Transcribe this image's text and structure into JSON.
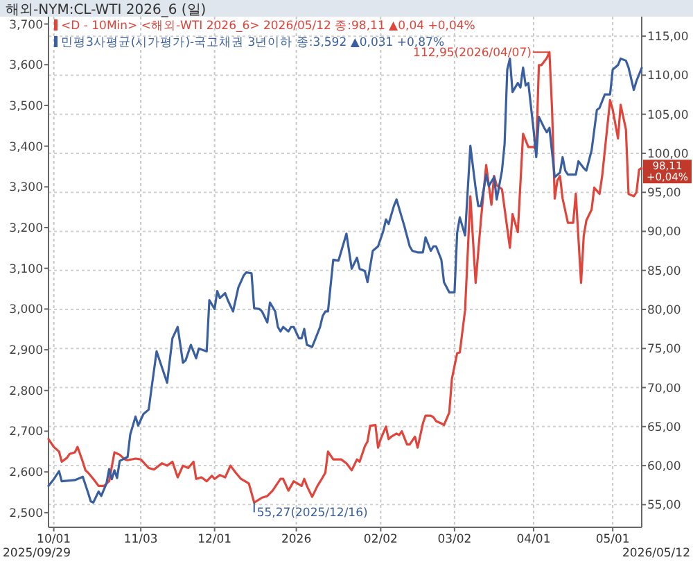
{
  "chart_data": {
    "type": "line",
    "title": "해외-NYM:CL-WTI 2026_6 (일)",
    "xlim": [
      "2025-09-29",
      "2026-05-12"
    ],
    "xticks": [
      {
        "value": "2025-10-01",
        "label": "10/01"
      },
      {
        "value": "2025-11-03",
        "label": "11/03"
      },
      {
        "value": "2025-12-01",
        "label": "12/01"
      },
      {
        "value": "2026-01-01",
        "label": "2026"
      },
      {
        "value": "2026-02-02",
        "label": "02/02"
      },
      {
        "value": "2026-03-02",
        "label": "03/02"
      },
      {
        "value": "2026-04-01",
        "label": "04/01"
      },
      {
        "value": "2026-05-01",
        "label": "05/01"
      }
    ],
    "ylim": [
      2464,
      3718
    ],
    "yticks": [
      {
        "value": 2500,
        "label": "2,500"
      },
      {
        "value": 2600,
        "label": "2,600"
      },
      {
        "value": 2700,
        "label": "2,700"
      },
      {
        "value": 2800,
        "label": "2,800"
      },
      {
        "value": 2900,
        "label": "2,900"
      },
      {
        "value": 3000,
        "label": "3,000"
      },
      {
        "value": 3100,
        "label": "3,100"
      },
      {
        "value": 3200,
        "label": "3,200"
      },
      {
        "value": 3300,
        "label": "3,300"
      },
      {
        "value": 3400,
        "label": "3,400"
      },
      {
        "value": 3500,
        "label": "3,500"
      },
      {
        "value": 3600,
        "label": "3,600"
      },
      {
        "value": 3700,
        "label": "3,700"
      }
    ],
    "y2lim": [
      52.1,
      117.5
    ],
    "y2ticks": [
      {
        "value": 55,
        "label": "55,00"
      },
      {
        "value": 60,
        "label": "60,00"
      },
      {
        "value": 65,
        "label": "65,00"
      },
      {
        "value": 70,
        "label": "70,00"
      },
      {
        "value": 75,
        "label": "75,00"
      },
      {
        "value": 80,
        "label": "80,00"
      },
      {
        "value": 85,
        "label": "85,00"
      },
      {
        "value": 90,
        "label": "90,00"
      },
      {
        "value": 95,
        "label": "95,00"
      },
      {
        "value": 100,
        "label": "100,00"
      },
      {
        "value": 105,
        "label": "105,00"
      },
      {
        "value": 110,
        "label": "110,00"
      },
      {
        "value": 115,
        "label": "115,00"
      }
    ],
    "grid": true,
    "legend": "top left",
    "marker": "none",
    "line_style": "solid",
    "series": [
      {
        "name": "<D - 10Min> <해외-WTI 2026_6> 2026/05/12 종:98,11 ▲0,04 +0,04%",
        "color": "#e0443a",
        "axis": "y2",
        "x": [
          "2025-09-29",
          "2025-10-01",
          "2025-10-03",
          "2025-10-04",
          "2025-10-06",
          "2025-10-07",
          "2025-10-09",
          "2025-10-10",
          "2025-10-12",
          "2025-10-13",
          "2025-10-14",
          "2025-10-16",
          "2025-10-18",
          "2025-10-20",
          "2025-10-22",
          "2025-10-24",
          "2025-10-26",
          "2025-10-28",
          "2025-10-29",
          "2025-11-01",
          "2025-11-03",
          "2025-11-06",
          "2025-11-08",
          "2025-11-11",
          "2025-11-13",
          "2025-11-15",
          "2025-11-17",
          "2025-11-19",
          "2025-11-21",
          "2025-11-23",
          "2025-11-24",
          "2025-11-26",
          "2025-11-28",
          "2025-11-30",
          "2025-12-01",
          "2025-12-03",
          "2025-12-05",
          "2025-12-07",
          "2025-12-09",
          "2025-12-11",
          "2025-12-14",
          "2025-12-15",
          "2025-12-16",
          "2025-12-19",
          "2025-12-21",
          "2025-12-23",
          "2025-12-26",
          "2025-12-27",
          "2025-12-29",
          "2025-12-31",
          "2026-01-03",
          "2026-01-04",
          "2026-01-05",
          "2026-01-07",
          "2026-01-09",
          "2026-01-11",
          "2026-01-12",
          "2026-01-13",
          "2026-01-15",
          "2026-01-18",
          "2026-01-20",
          "2026-01-22",
          "2026-01-24",
          "2026-01-25",
          "2026-01-27",
          "2026-01-28",
          "2026-01-29",
          "2026-01-31",
          "2026-02-01",
          "2026-02-02",
          "2026-02-04",
          "2026-02-05",
          "2026-02-06",
          "2026-02-08",
          "2026-02-09",
          "2026-02-10",
          "2026-02-12",
          "2026-02-13",
          "2026-02-15",
          "2026-02-16",
          "2026-02-18",
          "2026-02-19",
          "2026-02-21",
          "2026-02-22",
          "2026-02-23",
          "2026-02-25",
          "2026-02-26",
          "2026-02-28",
          "2026-03-01",
          "2026-03-03",
          "2026-03-04",
          "2026-03-06",
          "2026-03-08",
          "2026-03-10",
          "2026-03-12",
          "2026-03-14",
          "2026-03-16",
          "2026-03-17",
          "2026-03-18",
          "2026-03-20",
          "2026-03-23",
          "2026-03-24",
          "2026-03-26",
          "2026-03-28",
          "2026-03-30",
          "2026-04-01",
          "2026-04-02",
          "2026-04-03",
          "2026-04-04",
          "2026-04-06",
          "2026-04-07",
          "2026-04-08",
          "2026-04-09",
          "2026-04-10",
          "2026-04-11",
          "2026-04-12",
          "2026-04-14",
          "2026-04-16",
          "2026-04-17",
          "2026-04-19",
          "2026-04-20",
          "2026-04-21",
          "2026-04-23",
          "2026-04-24",
          "2026-04-26",
          "2026-04-27",
          "2026-04-30",
          "2026-05-01",
          "2026-05-03",
          "2026-05-04",
          "2026-05-06",
          "2026-05-07",
          "2026-05-09",
          "2026-05-10",
          "2026-05-11",
          "2026-05-12"
        ],
        "values": [
          63.4,
          62.4,
          61.8,
          60.5,
          61.0,
          61.5,
          61.7,
          62.4,
          60.5,
          59.4,
          59.1,
          58.3,
          57.4,
          57.4,
          58.0,
          61.7,
          61.4,
          60.8,
          60.7,
          60.9,
          60.8,
          59.7,
          59.5,
          60.3,
          60.0,
          60.5,
          58.5,
          60.0,
          59.7,
          60.5,
          58.3,
          58.5,
          58.0,
          58.7,
          58.3,
          58.8,
          58.5,
          60.0,
          59.1,
          58.3,
          57.7,
          56.5,
          55.27,
          55.9,
          56.1,
          56.8,
          58.3,
          58.3,
          56.8,
          58.0,
          57.4,
          58.3,
          57.4,
          56.0,
          57.4,
          58.5,
          59.1,
          61.8,
          60.8,
          60.8,
          60.3,
          59.4,
          60.8,
          60.5,
          62.5,
          63.1,
          65.1,
          65.2,
          62.3,
          63.4,
          65.0,
          63.4,
          63.7,
          64.1,
          63.9,
          64.4,
          62.7,
          62.7,
          63.7,
          62.3,
          65.4,
          66.4,
          66.4,
          66.2,
          65.7,
          65.4,
          65.2,
          66.8,
          71.1,
          74.4,
          74.5,
          79.9,
          94.5,
          83.4,
          91.4,
          98.5,
          93.4,
          97.1,
          95.9,
          95.4,
          87.9,
          92.2,
          89.9,
          102.5,
          100.8,
          100.8,
          100.5,
          111.3,
          111.3,
          112.2,
          112.95,
          105.6,
          94.2,
          96.5,
          97.1,
          94.2,
          91.1,
          91.1,
          94.8,
          83.4,
          89.4,
          91.4,
          92.8,
          95.6,
          94.8,
          97.1,
          106.8,
          105.6,
          101.9,
          106.2,
          103.1,
          94.8,
          94.5,
          95.0,
          97.9,
          98.11
        ]
      },
      {
        "name": "민평3사평균(시가평가)-국고채권 3년이하 종:3,592 ▲0,031 +0,87%",
        "color": "#3a5fa0",
        "x": [
          "2025-09-29",
          "2025-10-01",
          "2025-10-03",
          "2025-10-04",
          "2025-10-09",
          "2025-10-12",
          "2025-10-14",
          "2025-10-15",
          "2025-10-16",
          "2025-10-18",
          "2025-10-19",
          "2025-10-21",
          "2025-10-22",
          "2025-10-23",
          "2025-10-24",
          "2025-10-25",
          "2025-10-26",
          "2025-10-29",
          "2025-10-30",
          "2025-11-01",
          "2025-11-02",
          "2025-11-04",
          "2025-11-06",
          "2025-11-07",
          "2025-11-09",
          "2025-11-11",
          "2025-11-13",
          "2025-11-14",
          "2025-11-15",
          "2025-11-17",
          "2025-11-19",
          "2025-11-20",
          "2025-11-22",
          "2025-11-24",
          "2025-11-25",
          "2025-11-28",
          "2025-11-29",
          "2025-12-01",
          "2025-12-02",
          "2025-12-03",
          "2025-12-05",
          "2025-12-06",
          "2025-12-08",
          "2025-12-10",
          "2025-12-12",
          "2025-12-13",
          "2025-12-15",
          "2025-12-16",
          "2025-12-18",
          "2025-12-19",
          "2025-12-21",
          "2025-12-22",
          "2025-12-24",
          "2025-12-25",
          "2025-12-26",
          "2025-12-27",
          "2025-12-29",
          "2025-12-30",
          "2025-12-31",
          "2026-01-02",
          "2026-01-03",
          "2026-01-04",
          "2026-01-05",
          "2026-01-07",
          "2026-01-08",
          "2026-01-10",
          "2026-01-11",
          "2026-01-12",
          "2026-01-13",
          "2026-01-15",
          "2026-01-17",
          "2026-01-20",
          "2026-01-22",
          "2026-01-24",
          "2026-01-25",
          "2026-01-27",
          "2026-01-28",
          "2026-01-30",
          "2026-02-01",
          "2026-02-03",
          "2026-02-04",
          "2026-02-05",
          "2026-02-07",
          "2026-02-08",
          "2026-02-10",
          "2026-02-11",
          "2026-02-13",
          "2026-02-14",
          "2026-02-16",
          "2026-02-18",
          "2026-02-19",
          "2026-02-21",
          "2026-02-22",
          "2026-02-23",
          "2026-02-25",
          "2026-02-26",
          "2026-02-28",
          "2026-03-02",
          "2026-03-03",
          "2026-03-04",
          "2026-03-06",
          "2026-03-08",
          "2026-03-10",
          "2026-03-11",
          "2026-03-12",
          "2026-03-14",
          "2026-03-15",
          "2026-03-17",
          "2026-03-18",
          "2026-03-20",
          "2026-03-21",
          "2026-03-22",
          "2026-03-23",
          "2026-03-24",
          "2026-03-26",
          "2026-03-27",
          "2026-03-28",
          "2026-03-29",
          "2026-03-30",
          "2026-04-01",
          "2026-04-02",
          "2026-04-03",
          "2026-04-05",
          "2026-04-06",
          "2026-04-07",
          "2026-04-09",
          "2026-04-11",
          "2026-04-12",
          "2026-04-13",
          "2026-04-14",
          "2026-04-17",
          "2026-04-18",
          "2026-04-20",
          "2026-04-21",
          "2026-04-23",
          "2026-04-25",
          "2026-04-26",
          "2026-04-28",
          "2026-04-30",
          "2026-05-01",
          "2026-05-03",
          "2026-05-04",
          "2026-05-06",
          "2026-05-07",
          "2026-05-09",
          "2026-05-10",
          "2026-05-12"
        ],
        "values": [
          2566,
          2582,
          2602,
          2577,
          2580,
          2588,
          2549,
          2528,
          2525,
          2552,
          2541,
          2572,
          2607,
          2582,
          2604,
          2585,
          2627,
          2637,
          2692,
          2736,
          2714,
          2742,
          2753,
          2802,
          2896,
          2857,
          2819,
          2874,
          2928,
          2956,
          2868,
          2874,
          2912,
          2879,
          2903,
          2896,
          3022,
          3000,
          3044,
          3027,
          3039,
          3022,
          2994,
          3053,
          3082,
          3090,
          3088,
          3002,
          3000,
          2994,
          2967,
          3016,
          2994,
          2956,
          2945,
          2956,
          2945,
          2956,
          2956,
          2928,
          2928,
          2951,
          2912,
          2907,
          2923,
          2956,
          2983,
          2994,
          2994,
          3121,
          3119,
          3185,
          3099,
          3126,
          3099,
          3093,
          3066,
          3143,
          3154,
          3192,
          3220,
          3209,
          3253,
          3269,
          3225,
          3203,
          3154,
          3143,
          3139,
          3139,
          3176,
          3143,
          3154,
          3154,
          3121,
          3066,
          3041,
          3041,
          3187,
          3225,
          3181,
          3401,
          3297,
          3253,
          3253,
          3330,
          3302,
          3324,
          3269,
          3340,
          3406,
          3588,
          3615,
          3533,
          3555,
          3544,
          3593,
          3549,
          3555,
          3439,
          3373,
          3472,
          3445,
          3434,
          3445,
          3324,
          3335,
          3373,
          3340,
          3330,
          3330,
          3363,
          3346,
          3340,
          3390,
          3489,
          3494,
          3527,
          3527,
          3588,
          3599,
          3615,
          3610,
          3593,
          3538,
          3560,
          3592
        ]
      }
    ],
    "annotations": [
      "112,95(2026/04/07)",
      "55,27(2025/12/16)",
      "98,11\n+0,04%",
      "2025/09/29",
      "2026/05/12"
    ]
  }
}
